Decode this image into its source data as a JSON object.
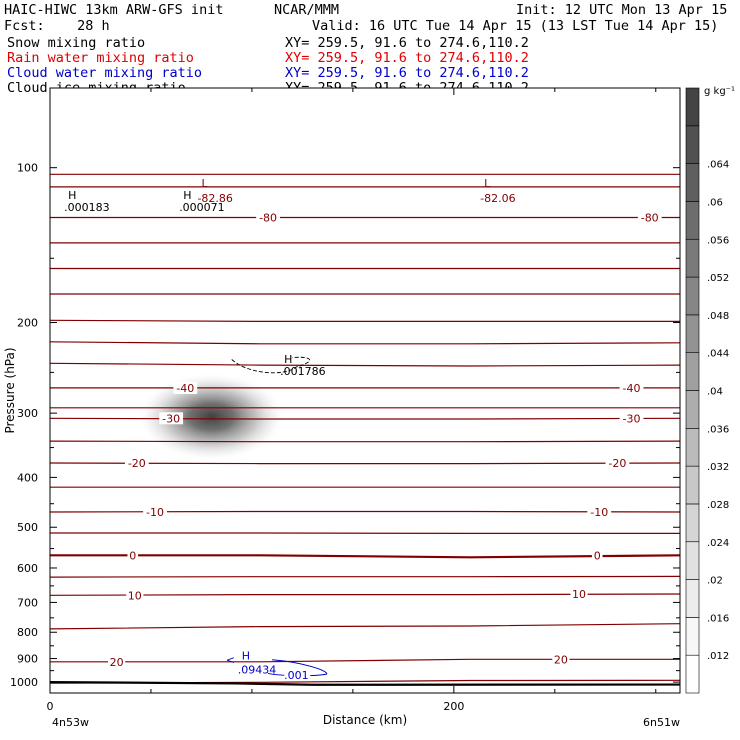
{
  "header": {
    "model": "HAIC-HIWC 13km ARW-GFS init",
    "org": "NCAR/MMM",
    "init": "Init: 12 UTC Mon 13 Apr 15",
    "fcst": "Fcst:    28 h",
    "valid": "Valid: 16 UTC Tue 14 Apr 15 (13 LST Tue 14 Apr 15)",
    "fields": [
      {
        "label": "Snow mixing ratio",
        "xy": "XY= 259.5, 91.6 to 274.6,110.2",
        "color": "#000000"
      },
      {
        "label": "Rain water mixing ratio",
        "xy": "XY= 259.5, 91.6 to 274.6,110.2",
        "color": "#e00000"
      },
      {
        "label": "Cloud water mixing ratio",
        "xy": "XY= 259.5, 91.6 to 274.6,110.2",
        "color": "#0000cc"
      },
      {
        "label": "Cloud ice mixing ratio",
        "xy": "XY= 259.5, 91.6 to 274.6,110.2",
        "color": "#000000"
      }
    ]
  },
  "chart_data": {
    "type": "heatmap",
    "xlabel": "Distance (km)",
    "ylabel": "Pressure (hPa)",
    "xlim": [
      0,
      312
    ],
    "ylim": [
      1050,
      70
    ],
    "x_ticks": [
      0,
      200
    ],
    "y_ticks": [
      100,
      200,
      300,
      400,
      500,
      600,
      700,
      800,
      900,
      1000
    ],
    "x_endpoints": {
      "left": "4n53w",
      "right": "6n51w"
    },
    "colorbar": {
      "unit": "g kg⁻¹",
      "ticks": [
        ".012",
        ".016",
        ".02",
        ".024",
        ".028",
        ".032",
        ".036",
        ".04",
        ".044",
        ".048",
        ".052",
        ".056",
        ".06",
        ".064"
      ],
      "colors": [
        "#ffffff",
        "#f7f7f7",
        "#ececec",
        "#e1e1e1",
        "#d5d5d5",
        "#c8c8c8",
        "#bbbbbb",
        "#adadad",
        "#a0a0a0",
        "#939393",
        "#868686",
        "#7a7a7a",
        "#6d6d6d",
        "#5f5f5f",
        "#515151",
        "#444444"
      ]
    },
    "snow_shading": {
      "center_x": 80,
      "center_p": 305,
      "peak": 0.064,
      "label": "Snow mixing ratio"
    },
    "temperature_contours": {
      "color": "#800000",
      "labels": [
        {
          "value": "-80",
          "x": 108,
          "p": 125
        },
        {
          "value": "-80",
          "x": 297,
          "p": 125
        },
        {
          "value": "-40",
          "x": 67,
          "p": 268
        },
        {
          "value": "-40",
          "x": 288,
          "p": 268
        },
        {
          "value": "-30",
          "x": 60,
          "p": 307
        },
        {
          "value": "-30",
          "x": 288,
          "p": 307
        },
        {
          "value": "-20",
          "x": 43,
          "p": 375
        },
        {
          "value": "-20",
          "x": 281,
          "p": 375
        },
        {
          "value": "-10",
          "x": 52,
          "p": 467
        },
        {
          "value": "-10",
          "x": 272,
          "p": 467
        },
        {
          "value": "0",
          "x": 41,
          "p": 567
        },
        {
          "value": "0",
          "x": 271,
          "p": 567
        },
        {
          "value": "10",
          "x": 42,
          "p": 678
        },
        {
          "value": "10",
          "x": 262,
          "p": 674
        },
        {
          "value": "20",
          "x": 33,
          "p": 913
        },
        {
          "value": "20",
          "x": 253,
          "p": 903
        }
      ],
      "extrema": [
        {
          "kind": "L",
          "value": "-82.86",
          "x": 75,
          "p": 107
        },
        {
          "kind": "L",
          "value": "-82.06",
          "x": 215,
          "p": 107
        }
      ]
    },
    "cloud_ice": {
      "color": "#000000",
      "maxima": [
        {
          "kind": "H",
          "value": ".000183",
          "x": 5,
          "p": 117
        },
        {
          "kind": "H",
          "value": ".000071",
          "x": 62,
          "p": 117
        },
        {
          "kind": "H",
          "value": ".001786",
          "x": 112,
          "p": 244
        }
      ]
    },
    "cloud_water": {
      "color": "#0000cc",
      "contour_label": ".001",
      "label_x": 122,
      "label_p": 969,
      "maximum": {
        "kind": "H",
        "value": ".09434",
        "x": 91,
        "p": 932
      }
    }
  }
}
